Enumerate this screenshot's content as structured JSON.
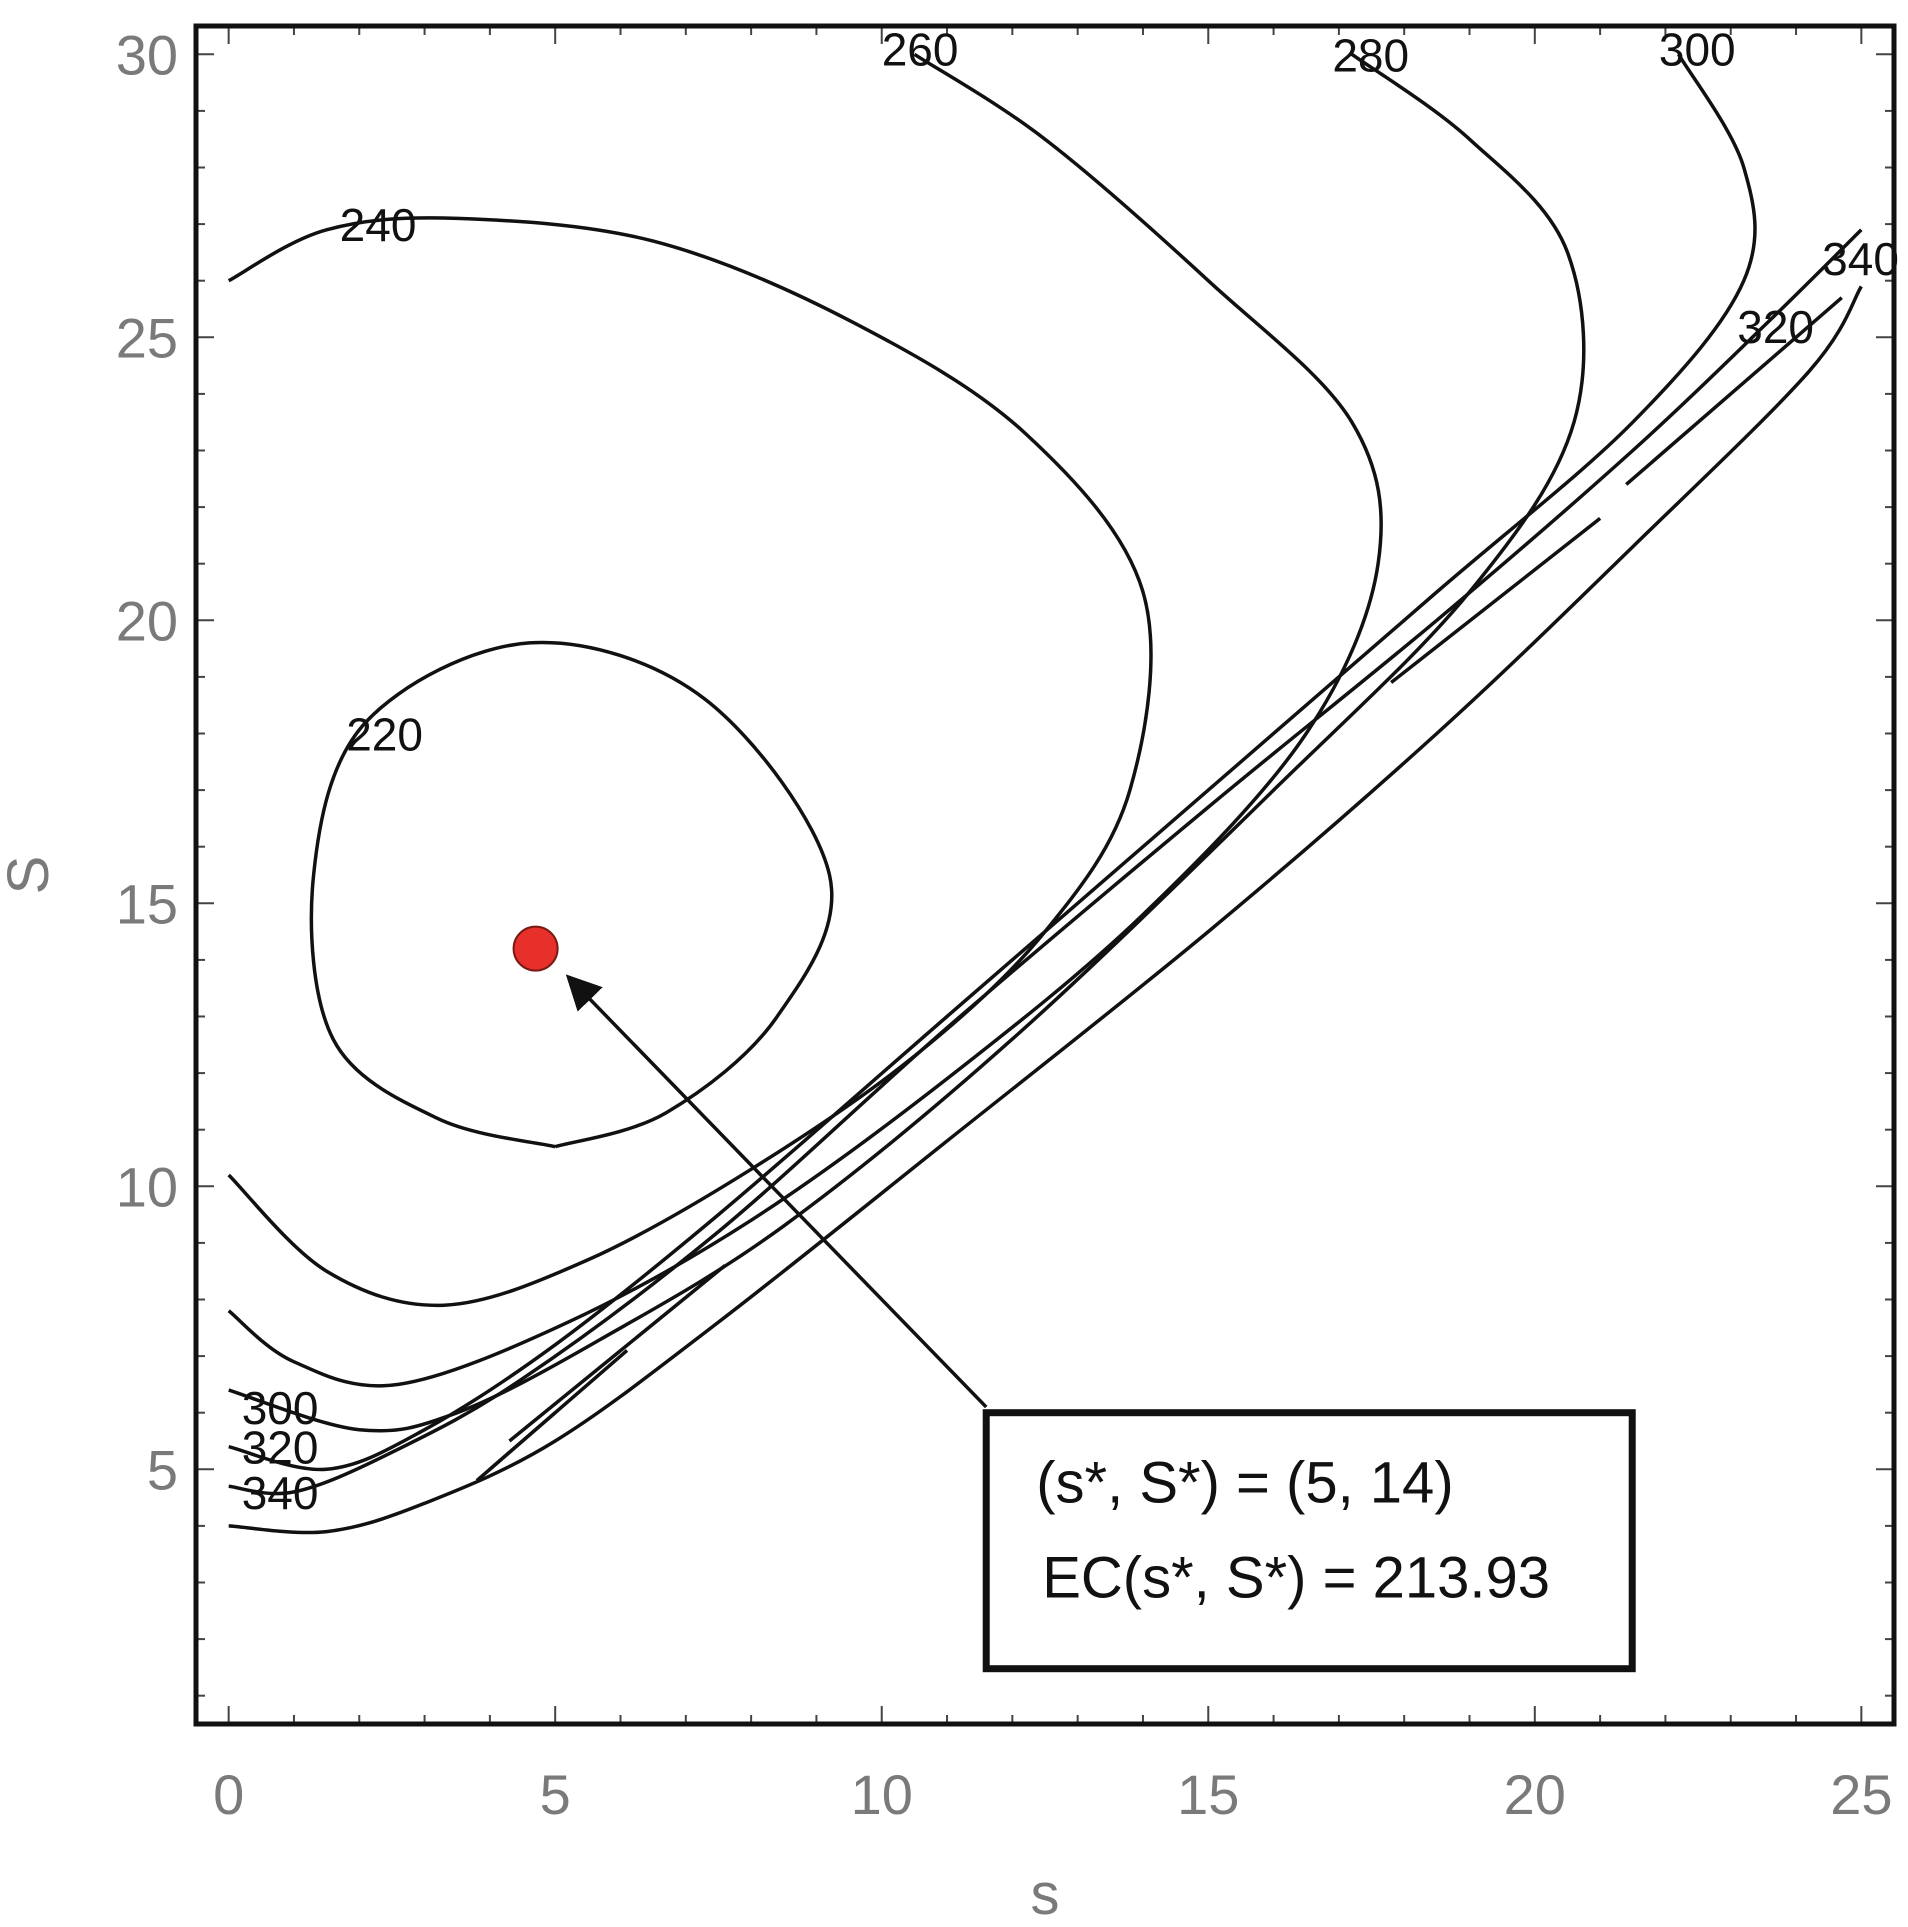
{
  "chart_data": {
    "type": "contour",
    "xlabel": "s",
    "ylabel": "S",
    "xlim": [
      -0.5,
      25.5
    ],
    "ylim": [
      0.5,
      30.5
    ],
    "x_ticks": [
      0,
      5,
      10,
      15,
      20,
      25
    ],
    "y_ticks": [
      5,
      10,
      15,
      20,
      25,
      30
    ],
    "x_tick_labels": [
      "0",
      "5",
      "10",
      "15",
      "20",
      "25"
    ],
    "y_tick_labels": [
      "5",
      "10",
      "15",
      "20",
      "25",
      "30"
    ],
    "grid": false,
    "colors": {
      "line": "#111111",
      "frame": "#111111",
      "tick_text": "#7a7a7a",
      "optimum": "#e8302a"
    },
    "contours": [
      {
        "level": 220,
        "label": "220",
        "label_at": [
          1.8,
          17.7
        ],
        "points": [
          [
            5.0,
            10.7
          ],
          [
            3.2,
            11.2
          ],
          [
            1.6,
            12.6
          ],
          [
            1.3,
            15.5
          ],
          [
            2.1,
            18.2
          ],
          [
            4.6,
            19.6
          ],
          [
            7.3,
            18.6
          ],
          [
            9.2,
            15.5
          ],
          [
            8.4,
            13.0
          ],
          [
            6.7,
            11.3
          ],
          [
            5.0,
            10.7
          ]
        ]
      },
      {
        "level": 240,
        "label": "240",
        "label_at": [
          1.7,
          26.7
        ],
        "points": [
          [
            0.0,
            26.0
          ],
          [
            1.5,
            26.9
          ],
          [
            3.5,
            27.1
          ],
          [
            6.5,
            26.7
          ],
          [
            9.5,
            25.3
          ],
          [
            12.2,
            23.3
          ],
          [
            14.0,
            20.5
          ],
          [
            13.8,
            17.0
          ],
          [
            12.5,
            14.5
          ],
          [
            10.5,
            12.3
          ],
          [
            8.0,
            10.3
          ],
          [
            5.5,
            8.7
          ],
          [
            3.3,
            7.9
          ],
          [
            1.5,
            8.5
          ],
          [
            0.0,
            10.2
          ]
        ]
      },
      {
        "level": 260,
        "label": "260",
        "label_at": [
          10.0,
          29.8
        ],
        "points": [
          [
            10.5,
            30.0
          ],
          [
            12.5,
            28.5
          ],
          [
            15.0,
            26.0
          ],
          [
            17.2,
            23.5
          ],
          [
            17.6,
            21.0
          ],
          [
            16.5,
            18.0
          ],
          [
            14.0,
            14.8
          ],
          [
            11.0,
            11.9
          ],
          [
            8.0,
            9.4
          ],
          [
            5.2,
            7.6
          ],
          [
            2.6,
            6.5
          ],
          [
            1.0,
            6.9
          ],
          [
            0.0,
            7.8
          ]
        ]
      },
      {
        "level": 280,
        "label": "280",
        "label_at": [
          16.9,
          29.7
        ],
        "points": [
          [
            17.2,
            30.0
          ],
          [
            19.0,
            28.5
          ],
          [
            20.5,
            26.5
          ],
          [
            20.6,
            23.5
          ],
          [
            19.0,
            20.5
          ],
          [
            16.0,
            17.0
          ],
          [
            12.0,
            12.6
          ],
          [
            8.5,
            9.3
          ],
          [
            5.7,
            7.3
          ],
          [
            3.5,
            6.0
          ],
          [
            2.0,
            5.7
          ],
          [
            0.0,
            6.4
          ]
        ]
      },
      {
        "level": 300,
        "label": "300",
        "label_at": [
          21.9,
          29.8
        ],
        "points": [
          [
            22.2,
            30.0
          ],
          [
            23.2,
            28.0
          ],
          [
            23.2,
            26.0
          ],
          [
            21.5,
            23.5
          ],
          [
            18.5,
            20.5
          ],
          [
            15.0,
            17.0
          ],
          [
            11.0,
            13.0
          ],
          [
            7.5,
            9.5
          ],
          [
            5.0,
            7.2
          ],
          [
            3.0,
            5.7
          ],
          [
            1.5,
            5.0
          ],
          [
            0.0,
            5.4
          ]
        ]
      },
      {
        "level": 320,
        "label": "320",
        "label_at": [
          23.1,
          24.9
        ],
        "points": [
          [
            25.0,
            26.9
          ],
          [
            23.6,
            25.3
          ],
          [
            21.5,
            23.0
          ],
          [
            18.5,
            20.0
          ],
          [
            15.0,
            16.7
          ],
          [
            11.0,
            12.8
          ],
          [
            7.5,
            9.2
          ],
          [
            4.5,
            6.6
          ],
          [
            2.5,
            5.3
          ],
          [
            1.0,
            4.6
          ],
          [
            0.0,
            4.7
          ]
        ]
      },
      {
        "level": 340,
        "label": "340",
        "label_at": [
          24.4,
          26.1
        ],
        "points": [
          [
            0.0,
            4.0
          ],
          [
            1.5,
            3.9
          ],
          [
            3.0,
            4.4
          ],
          [
            5.0,
            5.5
          ],
          [
            7.5,
            7.6
          ],
          [
            11.0,
            10.8
          ],
          [
            15.0,
            14.5
          ],
          [
            18.5,
            18.0
          ],
          [
            21.5,
            21.3
          ],
          [
            24.2,
            24.4
          ],
          [
            25.0,
            25.9
          ]
        ]
      },
      {
        "level": 340,
        "label": "340",
        "label_at": [
          0.2,
          4.3
        ],
        "points": []
      },
      {
        "level": 320,
        "label": "320",
        "label_at": [
          0.2,
          5.1
        ],
        "points": []
      },
      {
        "level": 300,
        "label": "300",
        "label_at": [
          0.2,
          5.8
        ],
        "points": []
      }
    ],
    "extra_segments": [
      [
        [
          21.4,
          22.4
        ],
        [
          24.7,
          25.7
        ]
      ],
      [
        [
          17.8,
          18.9
        ],
        [
          21.0,
          21.8
        ]
      ],
      [
        [
          3.8,
          4.8
        ],
        [
          5.0,
          6.0
        ]
      ],
      [
        [
          4.0,
          5.0
        ],
        [
          6.1,
          7.1
        ]
      ],
      [
        [
          4.3,
          5.5
        ],
        [
          7.6,
          8.6
        ]
      ]
    ],
    "optimum_point": {
      "x": 4.7,
      "y": 14.2
    },
    "arrow": {
      "from": [
        11.6,
        6.1
      ],
      "to": [
        5.2,
        13.7
      ]
    },
    "annotation": {
      "line1": "(s*, S*) = (5, 14)",
      "line2": "EC(s*, S*) = 213.93",
      "anchor": [
        11.6,
        6.0
      ]
    }
  }
}
